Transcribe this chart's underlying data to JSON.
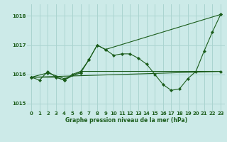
{
  "title": "Graphe pression niveau de la mer (hPa)",
  "background_color": "#cceae8",
  "grid_color": "#aad4d0",
  "line_color": "#1a5c1a",
  "xlim": [
    -0.5,
    23.5
  ],
  "ylim": [
    1014.75,
    1018.4
  ],
  "yticks": [
    1015,
    1016,
    1017,
    1018
  ],
  "xticks": [
    0,
    1,
    2,
    3,
    4,
    5,
    6,
    7,
    8,
    9,
    10,
    11,
    12,
    13,
    14,
    15,
    16,
    17,
    18,
    19,
    20,
    21,
    22,
    23
  ],
  "series1_x": [
    0,
    1,
    2,
    3,
    4,
    5,
    6,
    7,
    8,
    9,
    10,
    11,
    12,
    13,
    14,
    15,
    16,
    17,
    18,
    19,
    20,
    21,
    22,
    23
  ],
  "series1_y": [
    1015.9,
    1015.8,
    1016.1,
    1015.9,
    1015.8,
    1016.0,
    1016.1,
    1016.5,
    1017.0,
    1016.85,
    1016.65,
    1016.7,
    1016.7,
    1016.55,
    1016.35,
    1016.0,
    1015.65,
    1015.45,
    1015.5,
    1015.85,
    1016.1,
    1016.8,
    1017.45,
    1018.05
  ],
  "series2_x": [
    0,
    2,
    4,
    6,
    7,
    8,
    9,
    23
  ],
  "series2_y": [
    1015.9,
    1016.05,
    1015.85,
    1016.05,
    1016.5,
    1017.0,
    1016.85,
    1018.05
  ],
  "series3_x": [
    0,
    3,
    4,
    6,
    23
  ],
  "series3_y": [
    1015.9,
    1015.9,
    1015.8,
    1016.1,
    1016.1
  ],
  "series4_x": [
    0,
    23
  ],
  "series4_y": [
    1015.9,
    1016.1
  ],
  "xlabel_fontsize": 5.5,
  "tick_fontsize": 5.0
}
